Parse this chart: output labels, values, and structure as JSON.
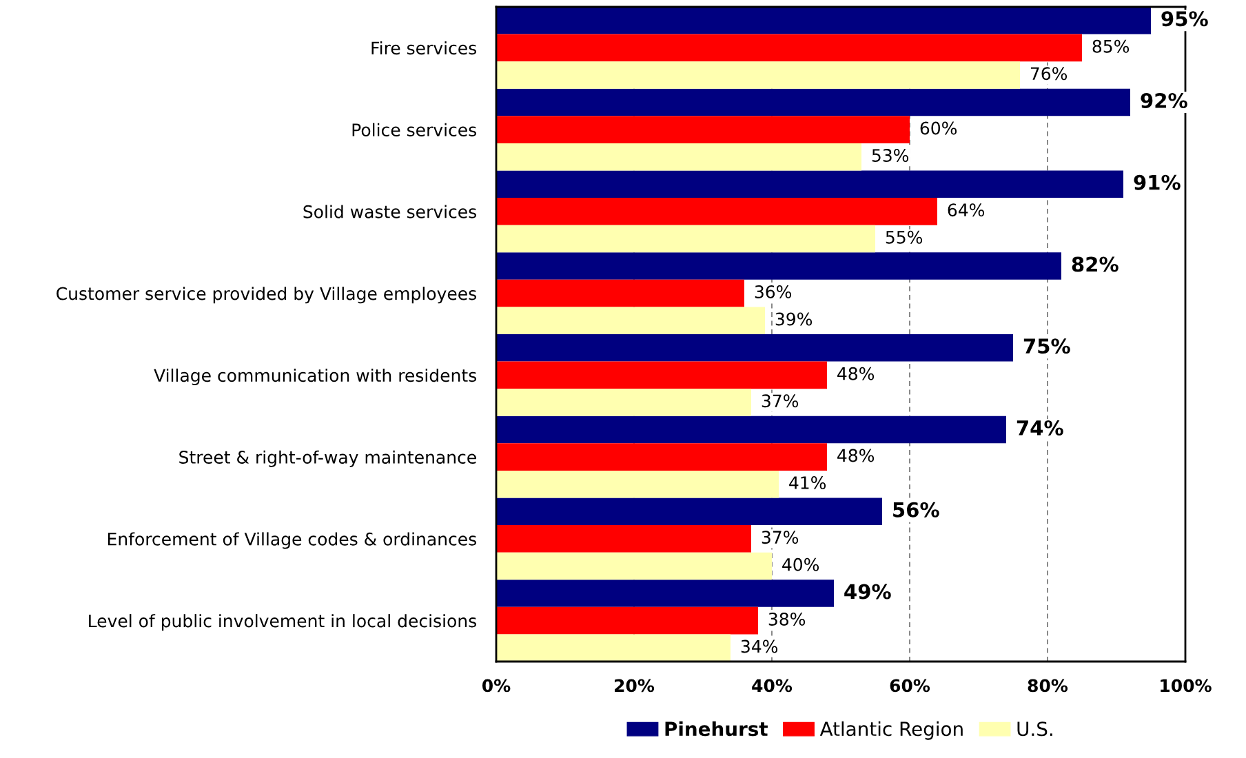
{
  "chart_data": {
    "type": "bar",
    "orientation": "horizontal",
    "categories": [
      "Fire services",
      "Police services",
      "Solid waste services",
      "Customer service provided by Village employees",
      "Village communication with residents",
      "Street & right-of-way maintenance",
      "Enforcement of Village codes & ordinances",
      "Level of public involvement in local decisions"
    ],
    "series": [
      {
        "name": "Pinehurst",
        "color": "#000080",
        "values": [
          95,
          92,
          91,
          82,
          75,
          74,
          56,
          49
        ],
        "value_labels": [
          "95%",
          "92%",
          "91%",
          "82%",
          "75%",
          "74%",
          "56%",
          "49%"
        ]
      },
      {
        "name": "Atlantic Region",
        "color": "#ff0000",
        "values": [
          85,
          60,
          64,
          36,
          48,
          48,
          37,
          38
        ],
        "value_labels": [
          "85%",
          "60%",
          "64%",
          "36%",
          "48%",
          "48%",
          "37%",
          "38%"
        ]
      },
      {
        "name": "U.S.",
        "color": "#ffffb0",
        "values": [
          76,
          53,
          55,
          39,
          37,
          41,
          40,
          34
        ],
        "value_labels": [
          "76%",
          "53%",
          "55%",
          "39%",
          "37%",
          "41%",
          "40%",
          "34%"
        ]
      }
    ],
    "xlim": [
      0,
      100
    ],
    "xticks": [
      {
        "value": 0,
        "label": "0%"
      },
      {
        "value": 20,
        "label": "20%"
      },
      {
        "value": 40,
        "label": "40%"
      },
      {
        "value": 60,
        "label": "60%"
      },
      {
        "value": 80,
        "label": "80%"
      },
      {
        "value": 100,
        "label": "100%"
      }
    ],
    "grid": "x",
    "legend": "bottom"
  }
}
